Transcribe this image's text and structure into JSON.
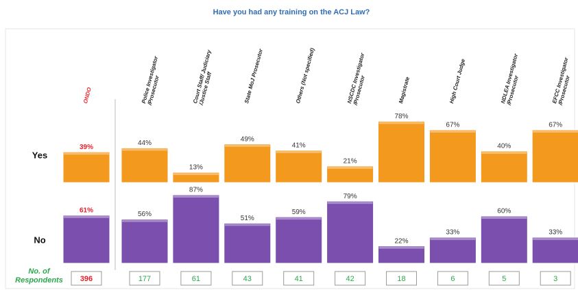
{
  "chart_data": {
    "type": "bar",
    "title": "Have you had any training  on the ACJ Law?",
    "categories": [
      "ONDO",
      "Police Investigator\n/Prosecutor",
      "Court Staff/ Judiciary\n/Justice Staff",
      "State MoJ Prosecutor",
      "Others (Not specified)",
      "NSCDC Investigator\n/Prosecutor",
      "Magistrate",
      "High Court Judge",
      "NDLEA Investigator\n/Prosecutor",
      "EFCC Investigator\n/Prosecutor"
    ],
    "highlight_color": "#e8202a",
    "series": [
      {
        "name": "Yes",
        "color": "#f39a1e",
        "values": [
          39,
          44,
          13,
          49,
          41,
          21,
          78,
          67,
          40,
          67
        ],
        "value_labels": [
          "39%",
          "44%",
          "13%",
          "49%",
          "41%",
          "21%",
          "78%",
          "67%",
          "40%",
          "67%"
        ]
      },
      {
        "name": "No",
        "color": "#7b4fae",
        "values": [
          61,
          56,
          87,
          51,
          59,
          79,
          22,
          33,
          60,
          33
        ],
        "value_labels": [
          "61%",
          "56%",
          "87%",
          "51%",
          "59%",
          "79%",
          "22%",
          "33%",
          "60%",
          "33%"
        ]
      }
    ],
    "respondents": {
      "label": "No. of\nRespondents",
      "color": "#2aa84a",
      "values": [
        396,
        177,
        61,
        43,
        41,
        42,
        18,
        6,
        5,
        3
      ]
    }
  }
}
